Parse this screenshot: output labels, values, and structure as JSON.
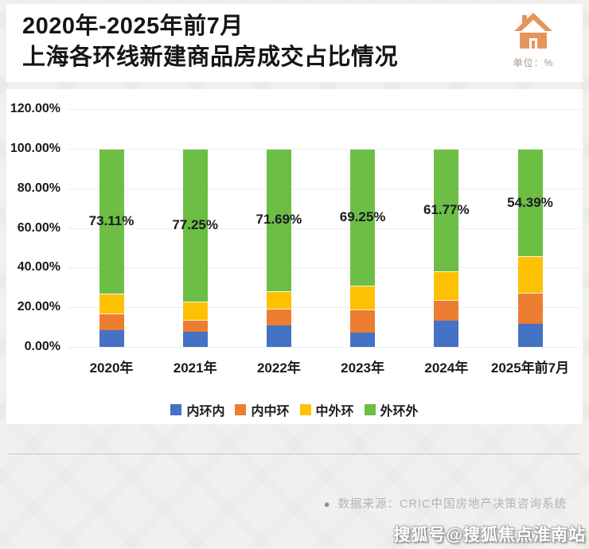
{
  "header": {
    "title_line1": "2020年-2025年前7月",
    "title_line2": "上海各环线新建商品房成交占比情况",
    "unit_label": "单位：%"
  },
  "chart_data": {
    "type": "bar",
    "stacked": true,
    "title": "2020年-2025年前7月上海各环线新建商品房成交占比情况",
    "unit": "%",
    "categories": [
      "2020年",
      "2021年",
      "2022年",
      "2023年",
      "2024年",
      "2025年前7月"
    ],
    "series": [
      {
        "name": "内环内",
        "color": "#4472c4",
        "values": [
          8.3,
          7.8,
          10.9,
          7.2,
          13.2,
          11.5
        ]
      },
      {
        "name": "内中环",
        "color": "#ed7d31",
        "values": [
          8.6,
          6.0,
          8.2,
          11.8,
          10.5,
          16.0
        ]
      },
      {
        "name": "中外环",
        "color": "#fdc101",
        "values": [
          9.99,
          8.95,
          9.21,
          11.75,
          14.53,
          18.11
        ]
      },
      {
        "name": "外环外",
        "color": "#6cbe45",
        "values": [
          73.11,
          77.25,
          71.69,
          69.25,
          61.77,
          54.39
        ]
      }
    ],
    "data_labels": {
      "series": "外环外",
      "values": [
        "73.11%",
        "77.25%",
        "71.69%",
        "69.25%",
        "61.77%",
        "54.39%"
      ]
    },
    "y_ticks": [
      "0.00%",
      "20.00%",
      "40.00%",
      "60.00%",
      "80.00%",
      "100.00%",
      "120.00%"
    ],
    "ylim": [
      0,
      120
    ],
    "grid": true,
    "legend_position": "bottom"
  },
  "footer": {
    "source_bullet": "●",
    "source_text": "数据来源：CRIC中国房地产决策咨询系统",
    "watermark": "搜狐号@搜狐焦点淮南站"
  }
}
